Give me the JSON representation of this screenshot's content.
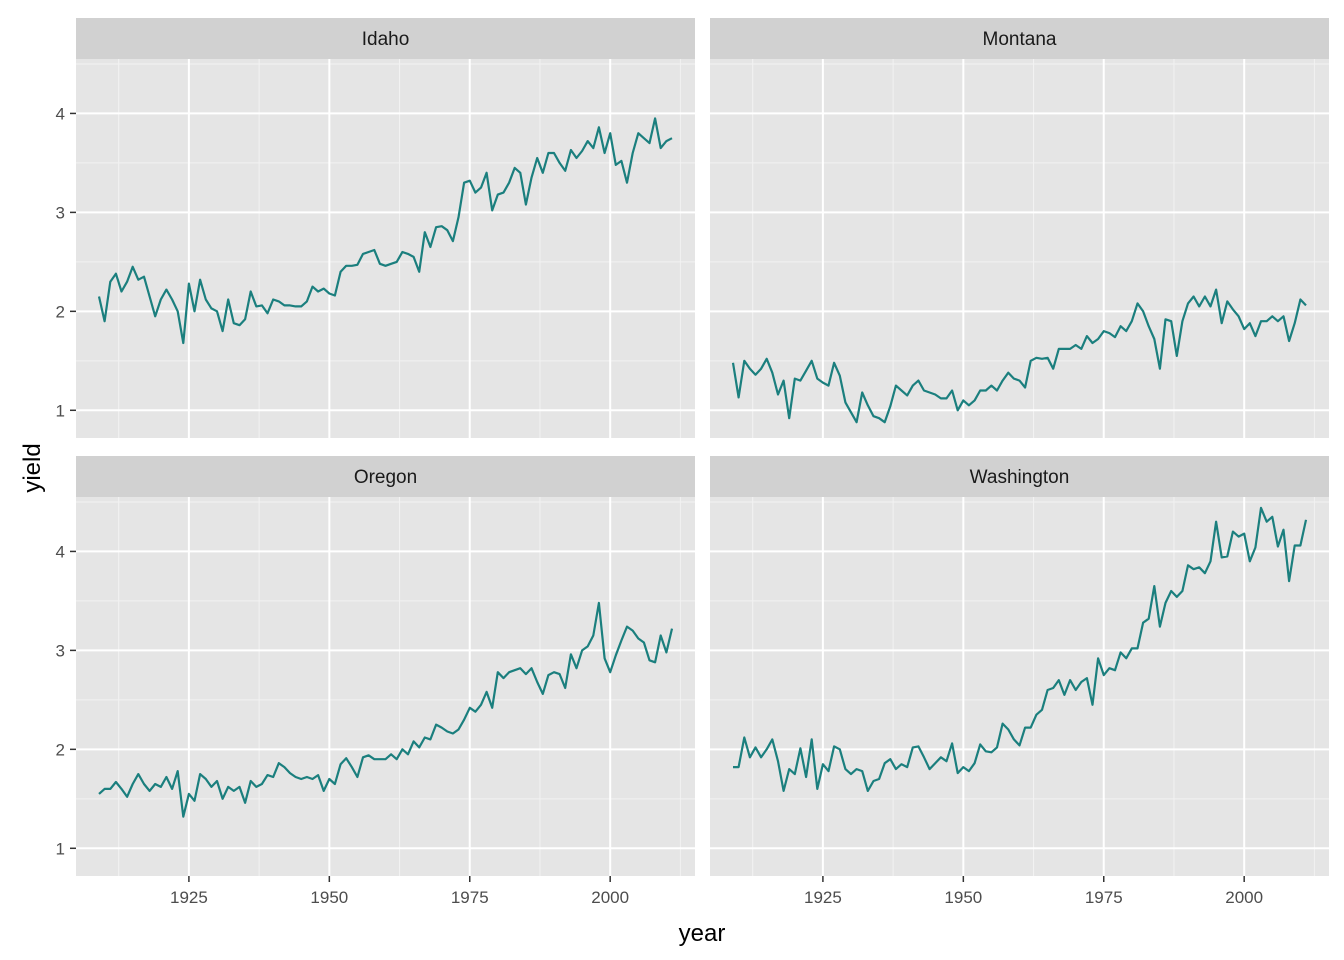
{
  "chart_data": {
    "type": "line",
    "layout": "facet-grid-2x2",
    "xlabel": "year",
    "ylabel": "yield",
    "xlim": [
      1904.9,
      2015.1
    ],
    "ylim": [
      0.72,
      4.55
    ],
    "x_ticks": [
      1925,
      1950,
      1975,
      2000
    ],
    "y_ticks": [
      1,
      2,
      3,
      4
    ],
    "grid": true,
    "line_color": "#1b7f7e",
    "panel_background": "#e5e5e5",
    "strip_background": "#d1d1d1",
    "years": [
      1909,
      1910,
      1911,
      1912,
      1913,
      1914,
      1915,
      1916,
      1917,
      1918,
      1919,
      1920,
      1921,
      1922,
      1923,
      1924,
      1925,
      1926,
      1927,
      1928,
      1929,
      1930,
      1931,
      1932,
      1933,
      1934,
      1935,
      1936,
      1937,
      1938,
      1939,
      1940,
      1941,
      1942,
      1943,
      1944,
      1945,
      1946,
      1947,
      1948,
      1949,
      1950,
      1951,
      1952,
      1953,
      1954,
      1955,
      1956,
      1957,
      1958,
      1959,
      1960,
      1961,
      1962,
      1963,
      1964,
      1965,
      1966,
      1967,
      1968,
      1969,
      1970,
      1971,
      1972,
      1973,
      1974,
      1975,
      1976,
      1977,
      1978,
      1979,
      1980,
      1981,
      1982,
      1983,
      1984,
      1985,
      1986,
      1987,
      1988,
      1989,
      1990,
      1991,
      1992,
      1993,
      1994,
      1995,
      1996,
      1997,
      1998,
      1999,
      2000,
      2001,
      2002,
      2003,
      2004,
      2005,
      2006,
      2007,
      2008,
      2009,
      2010,
      2011
    ],
    "panels": [
      {
        "name": "Idaho",
        "values": [
          2.15,
          1.9,
          2.3,
          2.38,
          2.2,
          2.3,
          2.45,
          2.32,
          2.35,
          2.15,
          1.95,
          2.12,
          2.22,
          2.12,
          2.0,
          1.68,
          2.28,
          2.0,
          2.32,
          2.12,
          2.03,
          2.0,
          1.8,
          2.12,
          1.88,
          1.86,
          1.92,
          2.2,
          2.05,
          2.06,
          1.98,
          2.12,
          2.1,
          2.06,
          2.06,
          2.05,
          2.05,
          2.1,
          2.25,
          2.2,
          2.23,
          2.18,
          2.16,
          2.4,
          2.46,
          2.46,
          2.47,
          2.58,
          2.6,
          2.62,
          2.48,
          2.46,
          2.48,
          2.5,
          2.6,
          2.58,
          2.55,
          2.4,
          2.8,
          2.65,
          2.85,
          2.86,
          2.82,
          2.71,
          2.95,
          3.3,
          3.32,
          3.2,
          3.25,
          3.4,
          3.02,
          3.18,
          3.2,
          3.3,
          3.45,
          3.4,
          3.08,
          3.35,
          3.55,
          3.4,
          3.6,
          3.6,
          3.5,
          3.42,
          3.63,
          3.55,
          3.62,
          3.72,
          3.65,
          3.86,
          3.6,
          3.8,
          3.48,
          3.52,
          3.3,
          3.6,
          3.8,
          3.75,
          3.7,
          3.95,
          3.65,
          3.72,
          3.75
        ]
      },
      {
        "name": "Montana",
        "values": [
          1.48,
          1.13,
          1.5,
          1.42,
          1.36,
          1.42,
          1.52,
          1.38,
          1.16,
          1.3,
          0.92,
          1.32,
          1.3,
          1.4,
          1.5,
          1.32,
          1.28,
          1.25,
          1.48,
          1.35,
          1.08,
          0.98,
          0.88,
          1.18,
          1.05,
          0.94,
          0.92,
          0.88,
          1.04,
          1.25,
          1.2,
          1.15,
          1.25,
          1.3,
          1.2,
          1.18,
          1.16,
          1.12,
          1.12,
          1.2,
          1.0,
          1.1,
          1.05,
          1.1,
          1.2,
          1.2,
          1.25,
          1.2,
          1.3,
          1.38,
          1.32,
          1.3,
          1.23,
          1.5,
          1.53,
          1.52,
          1.53,
          1.42,
          1.62,
          1.62,
          1.62,
          1.66,
          1.62,
          1.75,
          1.68,
          1.72,
          1.8,
          1.78,
          1.74,
          1.85,
          1.8,
          1.9,
          2.08,
          2.0,
          1.85,
          1.72,
          1.42,
          1.92,
          1.9,
          1.55,
          1.9,
          2.08,
          2.15,
          2.05,
          2.15,
          2.05,
          2.22,
          1.88,
          2.1,
          2.02,
          1.95,
          1.82,
          1.88,
          1.75,
          1.9,
          1.9,
          1.95,
          1.9,
          1.95,
          1.7,
          1.88,
          2.12,
          2.06
        ]
      },
      {
        "name": "Oregon",
        "values": [
          1.55,
          1.6,
          1.6,
          1.67,
          1.6,
          1.52,
          1.65,
          1.75,
          1.65,
          1.58,
          1.65,
          1.62,
          1.72,
          1.6,
          1.78,
          1.32,
          1.55,
          1.48,
          1.75,
          1.7,
          1.62,
          1.68,
          1.5,
          1.62,
          1.58,
          1.62,
          1.46,
          1.68,
          1.62,
          1.65,
          1.74,
          1.72,
          1.86,
          1.82,
          1.76,
          1.72,
          1.7,
          1.72,
          1.7,
          1.74,
          1.58,
          1.7,
          1.65,
          1.85,
          1.91,
          1.82,
          1.72,
          1.92,
          1.94,
          1.9,
          1.9,
          1.9,
          1.95,
          1.9,
          2.0,
          1.95,
          2.08,
          2.02,
          2.12,
          2.1,
          2.25,
          2.22,
          2.18,
          2.16,
          2.2,
          2.3,
          2.42,
          2.38,
          2.45,
          2.58,
          2.42,
          2.78,
          2.72,
          2.78,
          2.8,
          2.82,
          2.76,
          2.82,
          2.68,
          2.56,
          2.75,
          2.78,
          2.76,
          2.62,
          2.96,
          2.82,
          3.0,
          3.04,
          3.15,
          3.48,
          2.92,
          2.78,
          2.95,
          3.1,
          3.24,
          3.2,
          3.12,
          3.08,
          2.9,
          2.88,
          3.15,
          2.98,
          3.22
        ]
      },
      {
        "name": "Washington",
        "values": [
          1.82,
          1.82,
          2.12,
          1.92,
          2.02,
          1.92,
          2.0,
          2.1,
          1.88,
          1.58,
          1.8,
          1.75,
          2.01,
          1.72,
          2.1,
          1.6,
          1.85,
          1.78,
          2.03,
          2.0,
          1.8,
          1.75,
          1.8,
          1.78,
          1.58,
          1.68,
          1.7,
          1.86,
          1.9,
          1.8,
          1.85,
          1.82,
          2.02,
          2.03,
          1.92,
          1.8,
          1.86,
          1.92,
          1.88,
          2.06,
          1.76,
          1.82,
          1.78,
          1.86,
          2.05,
          1.98,
          1.97,
          2.02,
          2.26,
          2.2,
          2.1,
          2.04,
          2.22,
          2.22,
          2.35,
          2.4,
          2.6,
          2.62,
          2.7,
          2.55,
          2.7,
          2.6,
          2.68,
          2.72,
          2.45,
          2.92,
          2.75,
          2.82,
          2.8,
          2.98,
          2.92,
          3.02,
          3.02,
          3.28,
          3.32,
          3.65,
          3.24,
          3.48,
          3.6,
          3.54,
          3.6,
          3.86,
          3.82,
          3.84,
          3.78,
          3.9,
          4.3,
          3.94,
          3.95,
          4.2,
          4.15,
          4.18,
          3.9,
          4.04,
          4.44,
          4.3,
          4.35,
          4.05,
          4.22,
          3.7,
          4.06,
          4.06,
          4.32
        ]
      }
    ]
  }
}
